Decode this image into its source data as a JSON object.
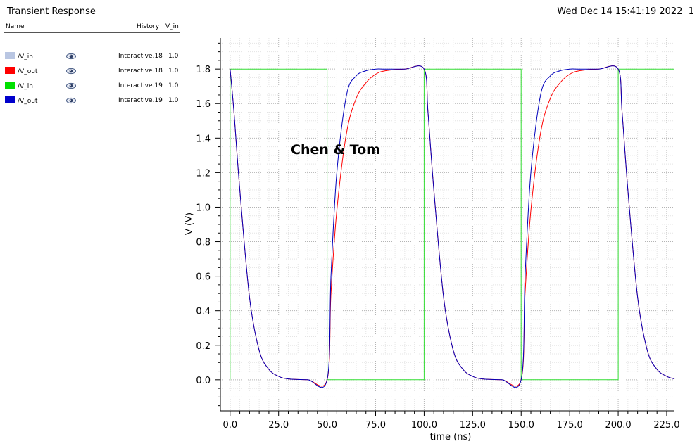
{
  "window": {
    "title": "Transient Response",
    "datetime": "Wed Dec 14 15:41:19 2022",
    "subwindow": "1"
  },
  "legend": {
    "header_name": "Name",
    "header_history": "History",
    "header_vin": "V_in",
    "rows": [
      {
        "name": "/V_in",
        "color": "#b9c6e2",
        "icon": "eye-icon",
        "history": "Interactive.18",
        "value": "1.0"
      },
      {
        "name": "/V_out",
        "color": "#ff0000",
        "icon": "eye-icon",
        "history": "Interactive.18",
        "value": "1.0"
      },
      {
        "name": "/V_in",
        "color": "#00e000",
        "icon": "eye-icon",
        "history": "Interactive.19",
        "value": "1.0"
      },
      {
        "name": "/V_out",
        "color": "#0000cc",
        "icon": "eye-icon",
        "history": "Interactive.19",
        "value": "1.0"
      }
    ]
  },
  "chart_data": {
    "type": "line",
    "title": "",
    "xlabel": "time (ns)",
    "ylabel": "V (V)",
    "xlim": [
      -5,
      229
    ],
    "ylim": [
      -0.18,
      1.98
    ],
    "x_ticks": [
      "0.0",
      "25.0",
      "50.0",
      "75.0",
      "100.0",
      "125.0",
      "150.0",
      "175.0",
      "200.0",
      "225.0"
    ],
    "y_ticks": [
      "0.0",
      "0.2",
      "0.4",
      "0.6",
      "0.8",
      "1.0",
      "1.2",
      "1.4",
      "1.6",
      "1.8"
    ],
    "grid": true,
    "annotation": "Chen & Tom",
    "series": [
      {
        "name": "/V_in",
        "history": "Interactive.19",
        "color": "#33dd33",
        "x": [
          0,
          0,
          50,
          50,
          100,
          100,
          150,
          150,
          200,
          200,
          229
        ],
        "y": [
          0,
          1.8,
          1.8,
          0,
          0,
          1.8,
          1.8,
          0,
          0,
          1.8,
          1.8
        ]
      },
      {
        "name": "/V_out",
        "history": "Interactive.18",
        "color": "#ff0000",
        "x": [
          0,
          2,
          5,
          10,
          15,
          20,
          25,
          30,
          40,
          50,
          52,
          55,
          60,
          65,
          70,
          75,
          80,
          90,
          100,
          102,
          105,
          110,
          115,
          120,
          125,
          130,
          140,
          150,
          152,
          155,
          160,
          165,
          170,
          175,
          180,
          190,
          200,
          202,
          205,
          210,
          215,
          220,
          225,
          229
        ],
        "y": [
          1.8,
          1.55,
          1.1,
          0.48,
          0.17,
          0.06,
          0.02,
          0.005,
          0,
          0,
          0.5,
          0.98,
          1.43,
          1.63,
          1.72,
          1.77,
          1.79,
          1.8,
          1.8,
          1.55,
          1.1,
          0.48,
          0.17,
          0.06,
          0.02,
          0.005,
          0,
          0,
          0.5,
          0.98,
          1.43,
          1.63,
          1.72,
          1.77,
          1.79,
          1.8,
          1.8,
          1.55,
          1.1,
          0.48,
          0.17,
          0.06,
          0.02,
          0.005
        ]
      },
      {
        "name": "/V_out",
        "history": "Interactive.19",
        "color": "#0000bb",
        "x": [
          0,
          2,
          5,
          10,
          15,
          20,
          25,
          30,
          40,
          50,
          52,
          55,
          60,
          65,
          70,
          75,
          80,
          90,
          100,
          102,
          105,
          110,
          115,
          120,
          125,
          130,
          140,
          150,
          152,
          155,
          160,
          165,
          170,
          175,
          180,
          190,
          200,
          202,
          205,
          210,
          215,
          220,
          225,
          229
        ],
        "y": [
          1.8,
          1.55,
          1.1,
          0.48,
          0.17,
          0.06,
          0.02,
          0.005,
          0,
          0,
          0.6,
          1.2,
          1.65,
          1.76,
          1.79,
          1.8,
          1.8,
          1.8,
          1.8,
          1.55,
          1.1,
          0.48,
          0.17,
          0.06,
          0.02,
          0.005,
          0,
          0,
          0.6,
          1.2,
          1.65,
          1.76,
          1.79,
          1.8,
          1.8,
          1.8,
          1.8,
          1.55,
          1.1,
          0.48,
          0.17,
          0.06,
          0.02,
          0.005
        ]
      }
    ]
  }
}
